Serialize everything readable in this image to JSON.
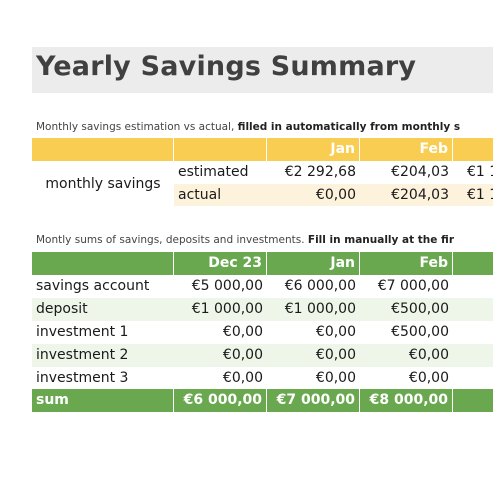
{
  "title": "Yearly Savings Summary",
  "section1": {
    "note_plain": "Monthly savings estimation vs actual, ",
    "note_bold": "filled in automatically from monthly s",
    "headers": [
      "",
      "",
      "Jan",
      "Feb",
      ""
    ],
    "row_group_label": "monthly savings",
    "rows": [
      {
        "label": "estimated",
        "values": [
          "€2 292,68",
          "€204,03",
          "€1 1"
        ]
      },
      {
        "label": "actual",
        "values": [
          "€0,00",
          "€204,03",
          "€1 1"
        ]
      }
    ]
  },
  "section2": {
    "note_plain": "Montly sums of savings, deposits and investments. ",
    "note_bold": "Fill in manually at the fir",
    "headers": [
      "",
      "Dec 23",
      "Jan",
      "Feb",
      ""
    ],
    "rows": [
      {
        "label": "savings account",
        "values": [
          "€5 000,00",
          "€6 000,00",
          "€7 000,00"
        ]
      },
      {
        "label": "deposit",
        "values": [
          "€1 000,00",
          "€1 000,00",
          "€500,00"
        ]
      },
      {
        "label": "investment 1",
        "values": [
          "€0,00",
          "€0,00",
          "€500,00"
        ]
      },
      {
        "label": "investment 2",
        "values": [
          "€0,00",
          "€0,00",
          "€0,00"
        ]
      },
      {
        "label": "investment 3",
        "values": [
          "€0,00",
          "€0,00",
          "€0,00"
        ]
      }
    ],
    "sum": {
      "label": "sum",
      "values": [
        "€6 000,00",
        "€7 000,00",
        "€8 000,00"
      ]
    }
  },
  "colors": {
    "yellow_header": "#f9cd52",
    "green_header": "#6aa84f",
    "title_band": "#ececec"
  }
}
